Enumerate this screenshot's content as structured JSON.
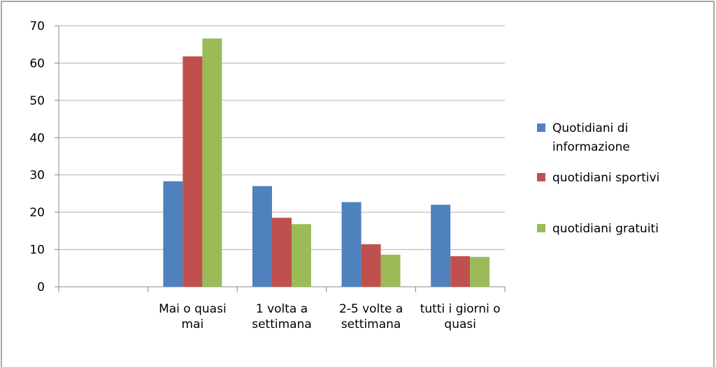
{
  "chart_data": {
    "type": "bar",
    "categories": [
      null,
      "Mai o quasi mai",
      "1 volta a settimana",
      "2-5 volte a settimana",
      "tutti i giorni o quasi"
    ],
    "series": [
      {
        "name": "Quotidiani di informazione",
        "color": "#4f81bd",
        "values": [
          null,
          28.3,
          27,
          22.7,
          22
        ]
      },
      {
        "name": "quotidiani sportivi",
        "color": "#c0504d",
        "values": [
          null,
          61.8,
          18.5,
          11.4,
          8.2
        ]
      },
      {
        "name": "quotidiani gratuiti",
        "color": "#9bbb59",
        "values": [
          null,
          66.6,
          16.8,
          8.6,
          8
        ]
      }
    ],
    "ylim": [
      0,
      70
    ],
    "yticks": [
      0,
      10,
      20,
      30,
      40,
      50,
      60,
      70
    ],
    "grid": true,
    "legend": "right"
  }
}
